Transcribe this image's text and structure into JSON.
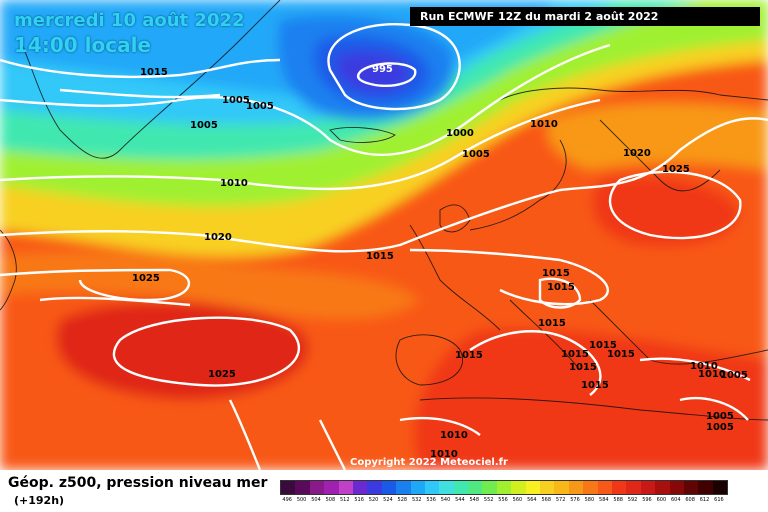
{
  "header": {
    "date": "mercredi 10 août 2022",
    "local_time": "14:00 locale",
    "run": "Run ECMWF 12Z du mardi 2 août 2022"
  },
  "footer": {
    "title": "Géop. z500, pression niveau mer",
    "lead": "(+192h)",
    "copyright": "Copyright 2022 Meteociel.fr"
  },
  "scale": {
    "labels": [
      "496",
      "500",
      "504",
      "508",
      "512",
      "516",
      "520",
      "524",
      "528",
      "532",
      "536",
      "540",
      "544",
      "548",
      "552",
      "556",
      "560",
      "564",
      "568",
      "572",
      "576",
      "580",
      "584",
      "588",
      "592",
      "596",
      "600",
      "604",
      "608",
      "612",
      "616"
    ],
    "colors": [
      "#3a0a3a",
      "#5a0a5a",
      "#8a1a8a",
      "#a020b0",
      "#c040c8",
      "#6a2ad0",
      "#3a3ae0",
      "#1a5ae8",
      "#1a80f0",
      "#20a8f8",
      "#30c8f8",
      "#40e0e0",
      "#40e8b0",
      "#50e880",
      "#70ec50",
      "#a0f030",
      "#d0f020",
      "#f8f020",
      "#f8d020",
      "#f8b818",
      "#f89818",
      "#f87818",
      "#f85818",
      "#f03818",
      "#e02818",
      "#c81818",
      "#a81010",
      "#880808",
      "#600404",
      "#400000",
      "#1a0000"
    ]
  },
  "pressure_labels": [
    {
      "text": "995",
      "role": "low-center"
    },
    {
      "text": "1000"
    },
    {
      "text": "1005"
    },
    {
      "text": "1005"
    },
    {
      "text": "1005"
    },
    {
      "text": "1005"
    },
    {
      "text": "1010"
    },
    {
      "text": "1010"
    },
    {
      "text": "1010"
    },
    {
      "text": "1010"
    },
    {
      "text": "1010"
    },
    {
      "text": "1010"
    },
    {
      "text": "1015"
    },
    {
      "text": "1015"
    },
    {
      "text": "1015"
    },
    {
      "text": "1015"
    },
    {
      "text": "1015"
    },
    {
      "text": "1015"
    },
    {
      "text": "1015"
    },
    {
      "text": "1015"
    },
    {
      "text": "1015"
    },
    {
      "text": "1015"
    },
    {
      "text": "1015"
    },
    {
      "text": "1020"
    },
    {
      "text": "1020"
    },
    {
      "text": "1025"
    },
    {
      "text": "1025"
    },
    {
      "text": "1025"
    },
    {
      "text": "1005"
    },
    {
      "text": "1005"
    },
    {
      "text": "1005"
    }
  ]
}
